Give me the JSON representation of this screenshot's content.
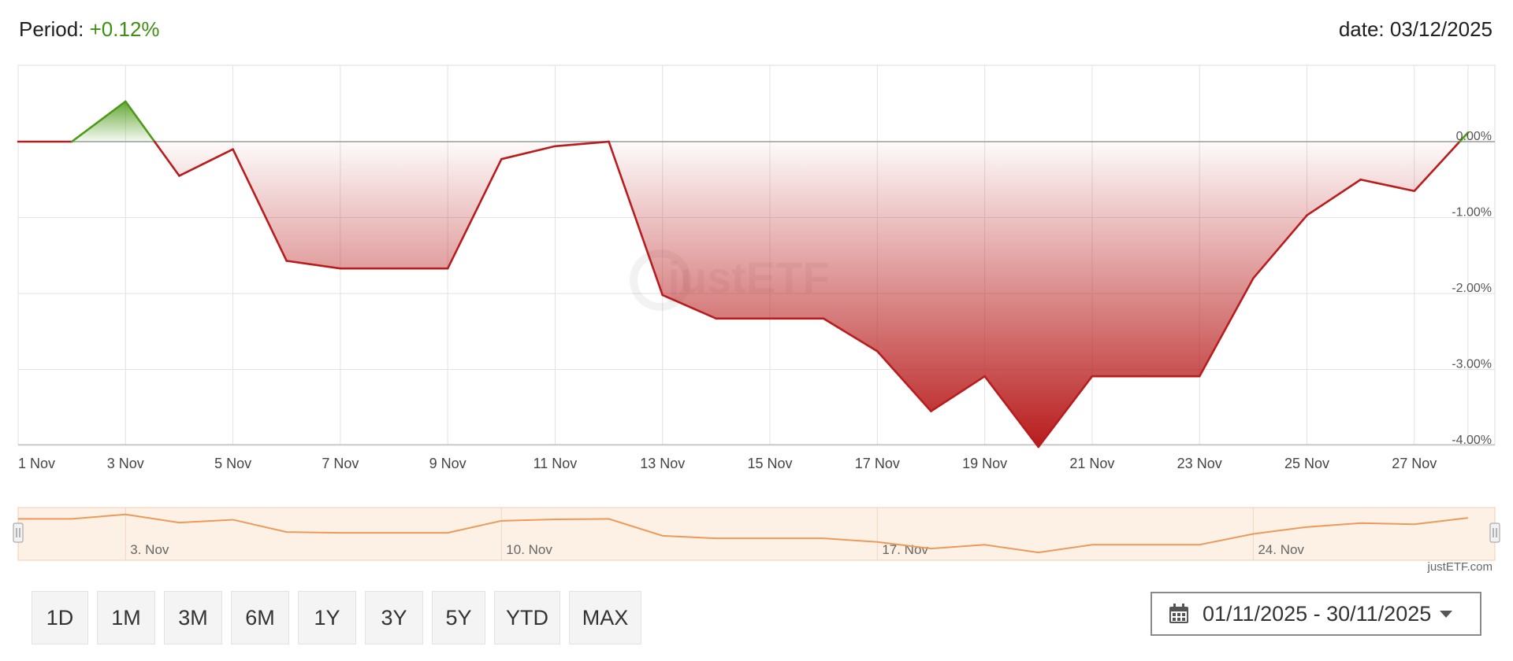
{
  "header": {
    "period_label": "Period:",
    "period_value": "+0.12%",
    "date_label": "date: 03/12/2025"
  },
  "colors": {
    "negative": "#b81c1c",
    "positive": "#4d9a17",
    "navigator_line": "#ec9a5a",
    "navigator_fill": "#fdf1e6"
  },
  "watermark": "justETF",
  "credit": "justETF.com",
  "range_buttons": [
    "1D",
    "1M",
    "3M",
    "6M",
    "1Y",
    "3Y",
    "5Y",
    "YTD",
    "MAX"
  ],
  "date_range": {
    "label": "01/11/2025 - 30/11/2025",
    "icon": "calendar-icon",
    "caret": "caret-down-icon"
  },
  "chart_data": {
    "type": "area",
    "x": [
      "1 Nov",
      "2 Nov",
      "3 Nov",
      "4 Nov",
      "5 Nov",
      "6 Nov",
      "7 Nov",
      "8 Nov",
      "9 Nov",
      "10 Nov",
      "11 Nov",
      "12 Nov",
      "13 Nov",
      "14 Nov",
      "15 Nov",
      "16 Nov",
      "17 Nov",
      "18 Nov",
      "19 Nov",
      "20 Nov",
      "21 Nov",
      "22 Nov",
      "23 Nov",
      "24 Nov",
      "25 Nov",
      "26 Nov",
      "27 Nov",
      "28 Nov"
    ],
    "x_tick_labels": [
      "1 Nov",
      "3 Nov",
      "5 Nov",
      "7 Nov",
      "9 Nov",
      "11 Nov",
      "13 Nov",
      "15 Nov",
      "17 Nov",
      "19 Nov",
      "21 Nov",
      "23 Nov",
      "25 Nov",
      "27 Nov"
    ],
    "values": [
      0.0,
      0.0,
      0.53,
      -0.45,
      -0.1,
      -1.57,
      -1.67,
      -1.67,
      -1.67,
      -0.23,
      -0.06,
      0.0,
      -2.02,
      -2.33,
      -2.33,
      -2.33,
      -2.76,
      -3.55,
      -3.09,
      -4.02,
      -3.09,
      -3.09,
      -3.09,
      -1.8,
      -0.97,
      -0.5,
      -0.65,
      0.12
    ],
    "y_tick_labels": [
      "0.00%",
      "-1.00%",
      "-2.00%",
      "-3.00%",
      "-4.00%"
    ],
    "y_ticks": [
      0,
      -1,
      -2,
      -3,
      -4
    ],
    "ylim": [
      -4.0,
      1.0
    ],
    "grid": true,
    "navigator_tick_labels": [
      "3. Nov",
      "10. Nov",
      "17. Nov",
      "24. Nov"
    ]
  }
}
